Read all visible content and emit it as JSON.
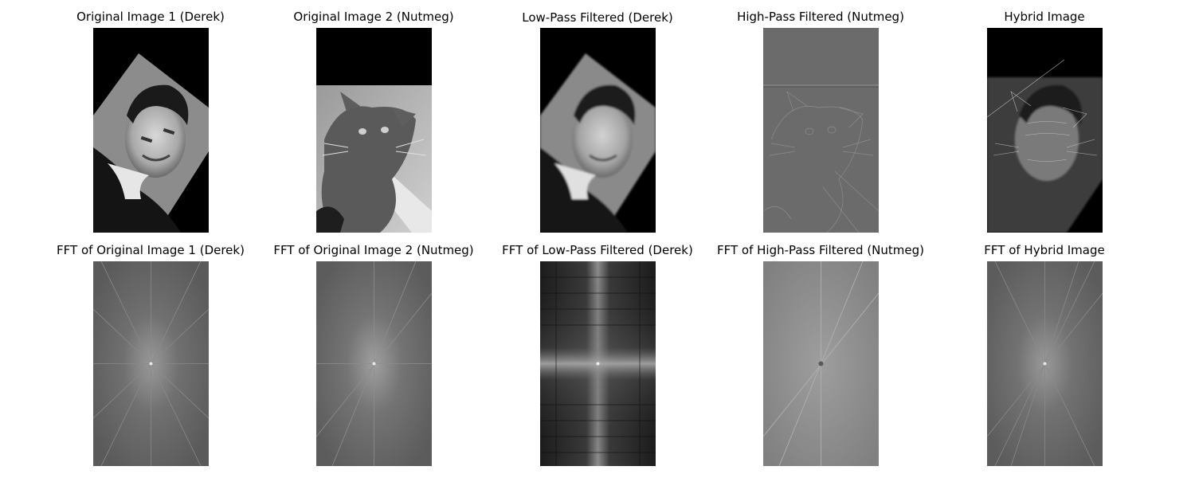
{
  "figure": {
    "rows": [
      {
        "panels": [
          {
            "title": "Original Image 1 (Derek)",
            "image": "portrait-man-grayscale"
          },
          {
            "title": "Original Image 2 (Nutmeg)",
            "image": "cat-grayscale"
          },
          {
            "title": "Low-Pass Filtered (Derek)",
            "image": "portrait-man-blurred"
          },
          {
            "title": "High-Pass Filtered (Nutmeg)",
            "image": "cat-edges"
          },
          {
            "title": "Hybrid Image",
            "image": "hybrid-man-cat"
          }
        ]
      },
      {
        "panels": [
          {
            "title": "FFT of Original Image 1 (Derek)",
            "image": "fft-spectrum"
          },
          {
            "title": "FFT of Original Image 2 (Nutmeg)",
            "image": "fft-spectrum"
          },
          {
            "title": "FFT of Low-Pass Filtered (Derek)",
            "image": "fft-spectrum-lowpass"
          },
          {
            "title": "FFT of High-Pass Filtered (Nutmeg)",
            "image": "fft-spectrum-highpass"
          },
          {
            "title": "FFT of Hybrid Image",
            "image": "fft-spectrum"
          }
        ]
      }
    ],
    "colors": {
      "background": "#ffffff",
      "black": "#000000",
      "rotated_bg": "#8a8a8a",
      "cat_bg": "#b4b4b4",
      "edge_gray": "#6b6b6b",
      "fft_gray": "#6e6e6e"
    }
  }
}
